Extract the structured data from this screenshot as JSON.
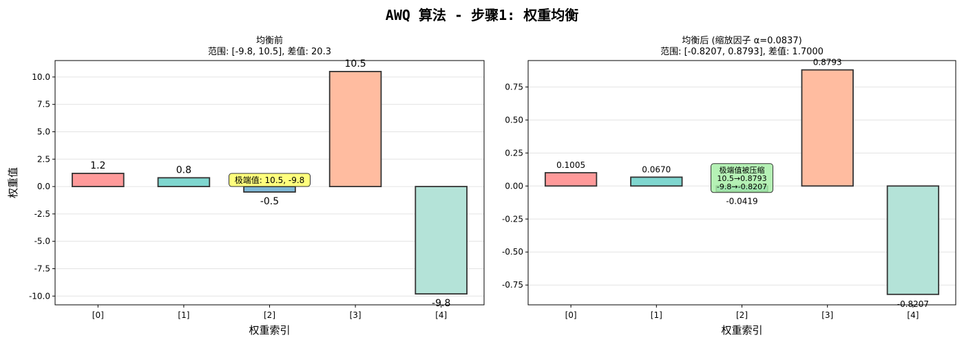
{
  "figure": {
    "suptitle": "AWQ 算法 - 步骤1: 权重均衡"
  },
  "chart_data": [
    {
      "type": "bar",
      "title": "均衡前",
      "subtitle": "范围: [-9.8, 10.5], 差值: 20.3",
      "xlabel": "权重索引",
      "ylabel": "权重值",
      "categories": [
        "[0]",
        "[1]",
        "[2]",
        "[3]",
        "[4]"
      ],
      "values": [
        1.2,
        0.8,
        -0.5,
        10.5,
        -9.8
      ],
      "value_labels": [
        "1.2",
        "0.8",
        "-0.5",
        "10.5",
        "-9.8"
      ],
      "colors": [
        "#ff9a9a",
        "#7fd6cf",
        "#7fb8d6",
        "#ffbca0",
        "#b4e3d8"
      ],
      "ylim": [
        -10.8,
        11.5
      ],
      "yticks": [
        -10.0,
        -7.5,
        -5.0,
        -2.5,
        0.0,
        2.5,
        5.0,
        7.5,
        10.0
      ],
      "ytick_labels": [
        "-10.0",
        "-7.5",
        "-5.0",
        "-2.5",
        "0.0",
        "2.5",
        "5.0",
        "7.5",
        "10.0"
      ],
      "grid": "y",
      "annotation": {
        "text": "极端值: 10.5, -9.8",
        "color": "#ffff66",
        "anchor_category": "[2]",
        "anchor_value": 0.6
      }
    },
    {
      "type": "bar",
      "title": "均衡后 (缩放因子 α=0.0837)",
      "subtitle": "范围: [-0.8207, 0.8793], 差值: 1.7000",
      "xlabel": "权重索引",
      "ylabel": "",
      "categories": [
        "[0]",
        "[1]",
        "[2]",
        "[3]",
        "[4]"
      ],
      "values": [
        0.1005,
        0.067,
        -0.0419,
        0.8793,
        -0.8207
      ],
      "value_labels": [
        "0.1005",
        "0.0670",
        "-0.0419",
        "0.8793",
        "-0.8207"
      ],
      "colors": [
        "#ff9a9a",
        "#7fd6cf",
        "#7fb8d6",
        "#ffbca0",
        "#b4e3d8"
      ],
      "ylim": [
        -0.9,
        0.95
      ],
      "yticks": [
        -0.75,
        -0.5,
        -0.25,
        0.0,
        0.25,
        0.5,
        0.75
      ],
      "ytick_labels": [
        "-0.75",
        "-0.50",
        "-0.25",
        "0.00",
        "0.25",
        "0.50",
        "0.75"
      ],
      "grid": "y",
      "annotation": {
        "lines": [
          "极端值被压缩",
          "10.5→0.8793",
          "-9.8→-0.8207"
        ],
        "color": "#a8eea8",
        "anchor_category": "[2]",
        "anchor_value": 0.06
      }
    }
  ]
}
